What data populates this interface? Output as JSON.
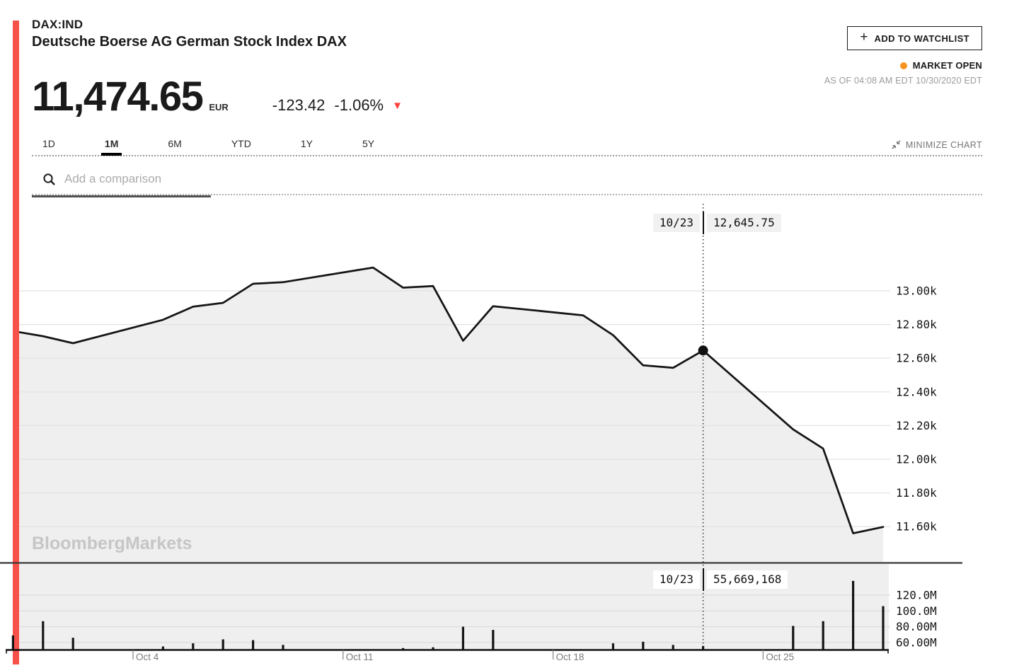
{
  "header": {
    "ticker": "DAX:IND",
    "name": "Deutsche Boerse AG German Stock Index DAX",
    "price": "11,474.65",
    "currency": "EUR",
    "change": "-123.42",
    "change_pct": "-1.06%",
    "direction_icon": "down-triangle",
    "watchlist_label": "ADD TO WATCHLIST",
    "market_status": "MARKET OPEN",
    "as_of": "AS OF 04:08 AM EDT 10/30/2020 EDT",
    "accent_red": "#f8514a",
    "status_orange": "#f7941f"
  },
  "toolbar": {
    "ranges": [
      "1D",
      "1M",
      "6M",
      "YTD",
      "1Y",
      "5Y"
    ],
    "active_range": "1M",
    "minimize_label": "MINIMIZE CHART"
  },
  "search": {
    "placeholder": "Add a comparison"
  },
  "watermark": "BloombergMarkets",
  "crosshair": {
    "date": "10/23",
    "price": "12,645.75",
    "volume": "55,669,168"
  },
  "chart_data": {
    "type": "line",
    "title": "DAX 1M price with volume bars",
    "grid": true,
    "price_axis": {
      "side": "right",
      "ticks": [
        {
          "label": "13.00k",
          "value": 13000
        },
        {
          "label": "12.80k",
          "value": 12800
        },
        {
          "label": "12.60k",
          "value": 12600
        },
        {
          "label": "12.40k",
          "value": 12400
        },
        {
          "label": "12.20k",
          "value": 12200
        },
        {
          "label": "12.00k",
          "value": 12000
        },
        {
          "label": "11.80k",
          "value": 11800
        },
        {
          "label": "11.60k",
          "value": 11600
        }
      ]
    },
    "volume_axis": {
      "side": "right",
      "ticks": [
        {
          "label": "120.0M",
          "value": 120
        },
        {
          "label": "100.0M",
          "value": 100
        },
        {
          "label": "80.00M",
          "value": 80
        },
        {
          "label": "60.00M",
          "value": 60
        }
      ]
    },
    "x_axis": {
      "ticks": [
        {
          "label": "Oct 4",
          "day": 4
        },
        {
          "label": "Oct 11",
          "day": 11
        },
        {
          "label": "Oct 18",
          "day": 18
        },
        {
          "label": "Oct 25",
          "day": 25
        }
      ]
    },
    "points": [
      {
        "date": "9/30",
        "day": 0,
        "close": 12760.73,
        "volume_m": 69
      },
      {
        "date": "10/1",
        "day": 1,
        "close": 12730.77,
        "volume_m": 87
      },
      {
        "date": "10/2",
        "day": 2,
        "close": 12689.04,
        "volume_m": 66
      },
      {
        "date": "10/5",
        "day": 5,
        "close": 12828.31,
        "volume_m": 55
      },
      {
        "date": "10/6",
        "day": 6,
        "close": 12906.02,
        "volume_m": 59
      },
      {
        "date": "10/7",
        "day": 7,
        "close": 12928.57,
        "volume_m": 64
      },
      {
        "date": "10/8",
        "day": 8,
        "close": 13042.21,
        "volume_m": 63
      },
      {
        "date": "10/9",
        "day": 9,
        "close": 13051.23,
        "volume_m": 57
      },
      {
        "date": "10/12",
        "day": 12,
        "close": 13138.41,
        "volume_m": 51
      },
      {
        "date": "10/13",
        "day": 13,
        "close": 13018.99,
        "volume_m": 53
      },
      {
        "date": "10/14",
        "day": 14,
        "close": 13028.06,
        "volume_m": 54
      },
      {
        "date": "10/15",
        "day": 15,
        "close": 12703.75,
        "volume_m": 80
      },
      {
        "date": "10/16",
        "day": 16,
        "close": 12908.99,
        "volume_m": 76
      },
      {
        "date": "10/19",
        "day": 19,
        "close": 12854.66,
        "volume_m": 49
      },
      {
        "date": "10/20",
        "day": 20,
        "close": 12736.95,
        "volume_m": 59
      },
      {
        "date": "10/21",
        "day": 21,
        "close": 12557.64,
        "volume_m": 61
      },
      {
        "date": "10/22",
        "day": 22,
        "close": 12543.06,
        "volume_m": 57
      },
      {
        "date": "10/23",
        "day": 23,
        "close": 12645.75,
        "volume_m": 55.67,
        "highlight": true
      },
      {
        "date": "10/26",
        "day": 26,
        "close": 12177.18,
        "volume_m": 81
      },
      {
        "date": "10/27",
        "day": 27,
        "close": 12063.57,
        "volume_m": 87
      },
      {
        "date": "10/28",
        "day": 28,
        "close": 11560.51,
        "volume_m": 138
      },
      {
        "date": "10/29",
        "day": 29,
        "close": 11598.07,
        "volume_m": 106
      }
    ]
  }
}
